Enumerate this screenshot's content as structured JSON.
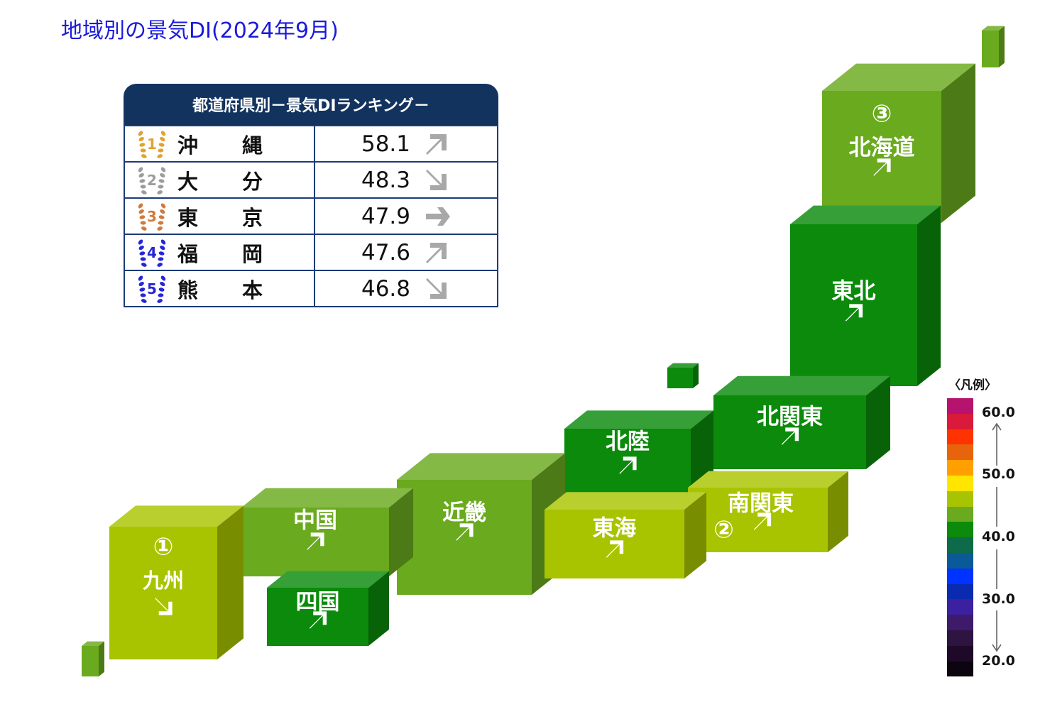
{
  "title": "地域別の景気DI(2024年9月)",
  "ranking": {
    "header": "都道府県別－景気DIランキング－",
    "rows": [
      {
        "rank": "1",
        "name_a": "沖",
        "name_b": "縄",
        "value": "58.1",
        "trend": "up",
        "medal_color": "#e0a32e"
      },
      {
        "rank": "2",
        "name_a": "大",
        "name_b": "分",
        "value": "48.3",
        "trend": "down",
        "medal_color": "#9c9c9c"
      },
      {
        "rank": "3",
        "name_a": "東",
        "name_b": "京",
        "value": "47.9",
        "trend": "flat",
        "medal_color": "#cf7a3e"
      },
      {
        "rank": "4",
        "name_a": "福",
        "name_b": "岡",
        "value": "47.6",
        "trend": "up",
        "medal_color": "#2626d8"
      },
      {
        "rank": "5",
        "name_a": "熊",
        "name_b": "本",
        "value": "46.8",
        "trend": "down",
        "medal_color": "#2626d8"
      }
    ]
  },
  "regions": [
    {
      "id": "hokkaido",
      "name": "北海道",
      "rank_mark": "③",
      "trend": "up",
      "color": "#6aaa1e"
    },
    {
      "id": "tohoku",
      "name": "東北",
      "rank_mark": "",
      "trend": "up",
      "color": "#0b8a0b"
    },
    {
      "id": "kitakanto",
      "name": "北関東",
      "rank_mark": "",
      "trend": "up",
      "color": "#0b8a0b"
    },
    {
      "id": "minamikanto",
      "name": "南関東",
      "rank_mark": "②",
      "trend": "up",
      "color": "#a8c400"
    },
    {
      "id": "hokuriku",
      "name": "北陸",
      "rank_mark": "",
      "trend": "up",
      "color": "#0b8a0b"
    },
    {
      "id": "tokai",
      "name": "東海",
      "rank_mark": "",
      "trend": "up",
      "color": "#a8c400"
    },
    {
      "id": "kinki",
      "name": "近畿",
      "rank_mark": "",
      "trend": "up",
      "color": "#6aaa1e"
    },
    {
      "id": "chugoku",
      "name": "中国",
      "rank_mark": "",
      "trend": "up",
      "color": "#6aaa1e"
    },
    {
      "id": "shikoku",
      "name": "四国",
      "rank_mark": "",
      "trend": "up",
      "color": "#0b8a0b"
    },
    {
      "id": "kyushu",
      "name": "九州",
      "rank_mark": "①",
      "trend": "down",
      "color": "#a8c400"
    }
  ],
  "legend": {
    "title": "〈凡例〉",
    "ticks": [
      "60.0",
      "50.0",
      "40.0",
      "30.0",
      "20.0"
    ],
    "colors": [
      "#b5136e",
      "#d91a3a",
      "#ff3300",
      "#e8640c",
      "#ffa000",
      "#ffe600",
      "#a8c400",
      "#6aaa1e",
      "#0b8a0b",
      "#0d6b4a",
      "#0a5a9a",
      "#0033ff",
      "#0a2ab0",
      "#3b20a0",
      "#3e1a6a",
      "#2e1440",
      "#1e0a28",
      "#0c0510"
    ]
  }
}
